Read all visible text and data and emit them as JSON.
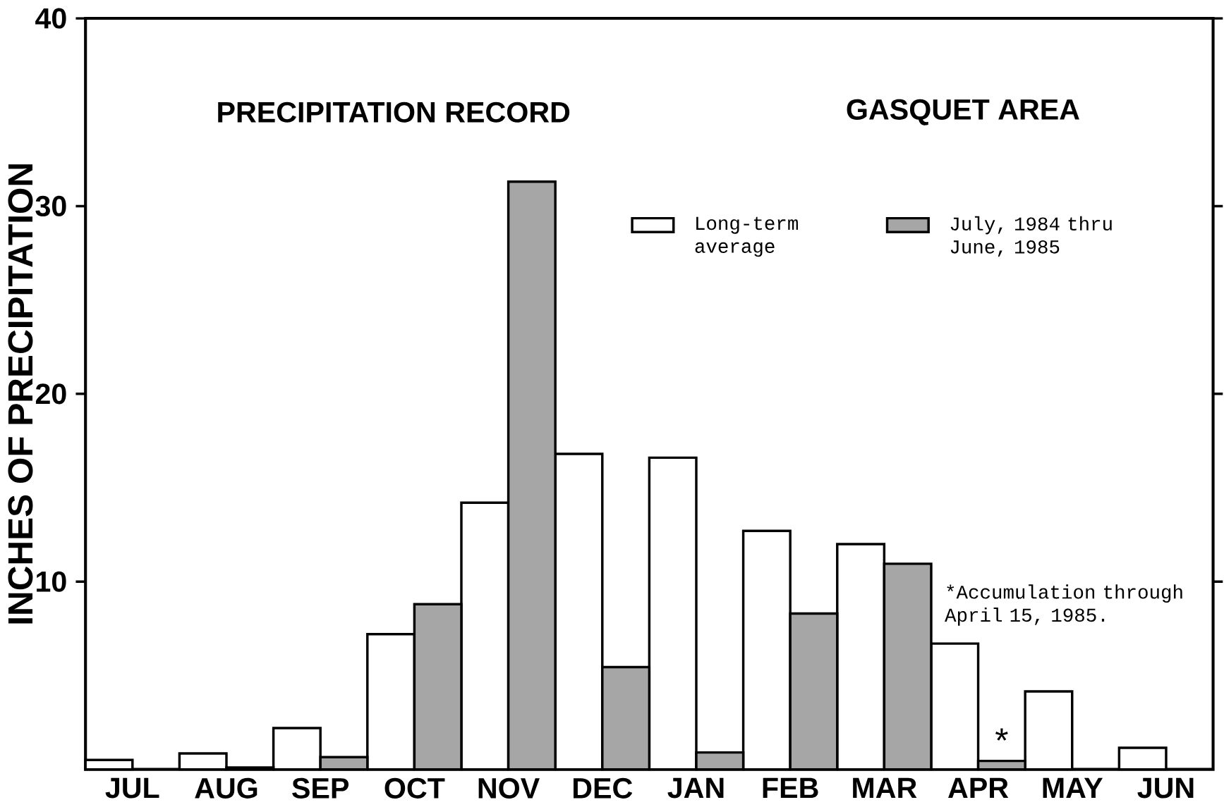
{
  "chart_data": {
    "type": "bar",
    "title": "PRECIPITATION RECORD",
    "subtitle": "GASQUET AREA",
    "ylabel": "INCHES OF PRECIPITATION",
    "categories": [
      "JUL",
      "AUG",
      "SEP",
      "OCT",
      "NOV",
      "DEC",
      "JAN",
      "FEB",
      "MAR",
      "APR",
      "MAY",
      "JUN"
    ],
    "series": [
      {
        "name": "Long-term average",
        "color": "#ffffff",
        "values": [
          0.5,
          0.85,
          2.2,
          7.2,
          14.2,
          16.8,
          16.6,
          12.7,
          12.0,
          6.7,
          4.15,
          1.15
        ]
      },
      {
        "name": "July, 1984 thru June, 1985",
        "color": "#a6a6a6",
        "values": [
          null,
          0.1,
          0.65,
          8.8,
          31.3,
          5.45,
          0.9,
          8.3,
          10.95,
          0.45,
          null,
          null
        ]
      }
    ],
    "ylim": [
      0,
      40
    ],
    "yticks": [
      10,
      20,
      30,
      40
    ],
    "legend": "top right",
    "annotations": [
      {
        "text": "*",
        "x": "APR",
        "y": 0.45
      },
      "*Accumulation through April 15, 1985."
    ]
  }
}
